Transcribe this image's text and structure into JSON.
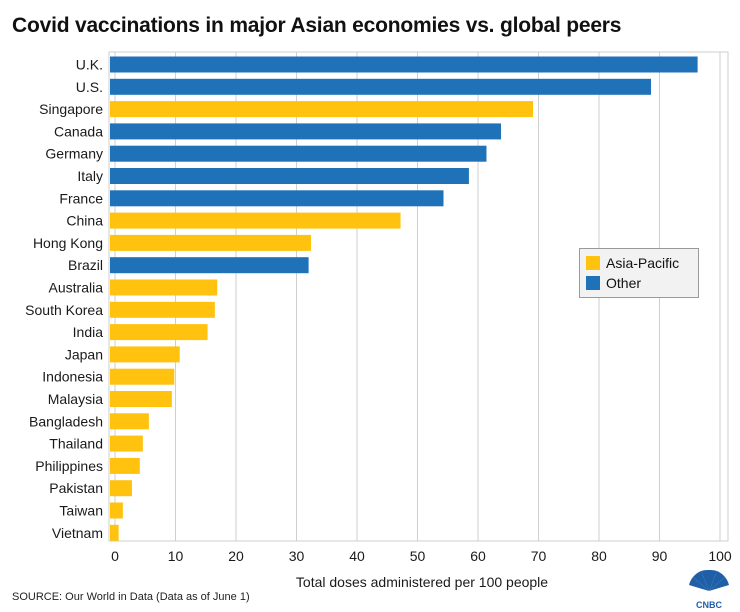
{
  "header": {
    "title": "Covid vaccinations in major Asian economies vs. global peers"
  },
  "footer": {
    "source": "SOURCE: Our World in Data (Data as of June 1)",
    "logo_text": "CNBC"
  },
  "colors": {
    "asia_pacific": "#ffc20e",
    "other": "#1f72b8",
    "grid": "#cfcfcf",
    "text": "#1a1a1a"
  },
  "legend": {
    "items": [
      {
        "label": "Asia-Pacific",
        "color": "#ffc20e"
      },
      {
        "label": "Other",
        "color": "#1f72b8"
      }
    ]
  },
  "chart_data": {
    "type": "bar",
    "orientation": "horizontal",
    "title": "Covid vaccinations in major Asian economies vs. global peers",
    "xlabel": "Total doses administered per 100 people",
    "ylabel": "",
    "xlim": [
      0,
      100
    ],
    "xticks": [
      0,
      10,
      20,
      30,
      40,
      50,
      60,
      70,
      80,
      90,
      100
    ],
    "grid": true,
    "legend_position": "right-middle",
    "categories": [
      "U.K.",
      "U.S.",
      "Singapore",
      "Canada",
      "Germany",
      "Italy",
      "France",
      "China",
      "Hong Kong",
      "Brazil",
      "Australia",
      "South Korea",
      "India",
      "Japan",
      "Indonesia",
      "Malaysia",
      "Bangladesh",
      "Thailand",
      "Philippines",
      "Pakistan",
      "Taiwan",
      "Vietnam"
    ],
    "values": [
      96.3,
      88.6,
      69.1,
      63.8,
      61.4,
      58.5,
      54.3,
      47.2,
      32.4,
      32.0,
      16.9,
      16.5,
      15.3,
      10.7,
      9.8,
      9.4,
      5.6,
      4.6,
      4.1,
      2.8,
      1.3,
      0.6
    ],
    "groups": [
      "Other",
      "Other",
      "Asia-Pacific",
      "Other",
      "Other",
      "Other",
      "Other",
      "Asia-Pacific",
      "Asia-Pacific",
      "Other",
      "Asia-Pacific",
      "Asia-Pacific",
      "Asia-Pacific",
      "Asia-Pacific",
      "Asia-Pacific",
      "Asia-Pacific",
      "Asia-Pacific",
      "Asia-Pacific",
      "Asia-Pacific",
      "Asia-Pacific",
      "Asia-Pacific",
      "Asia-Pacific"
    ]
  }
}
